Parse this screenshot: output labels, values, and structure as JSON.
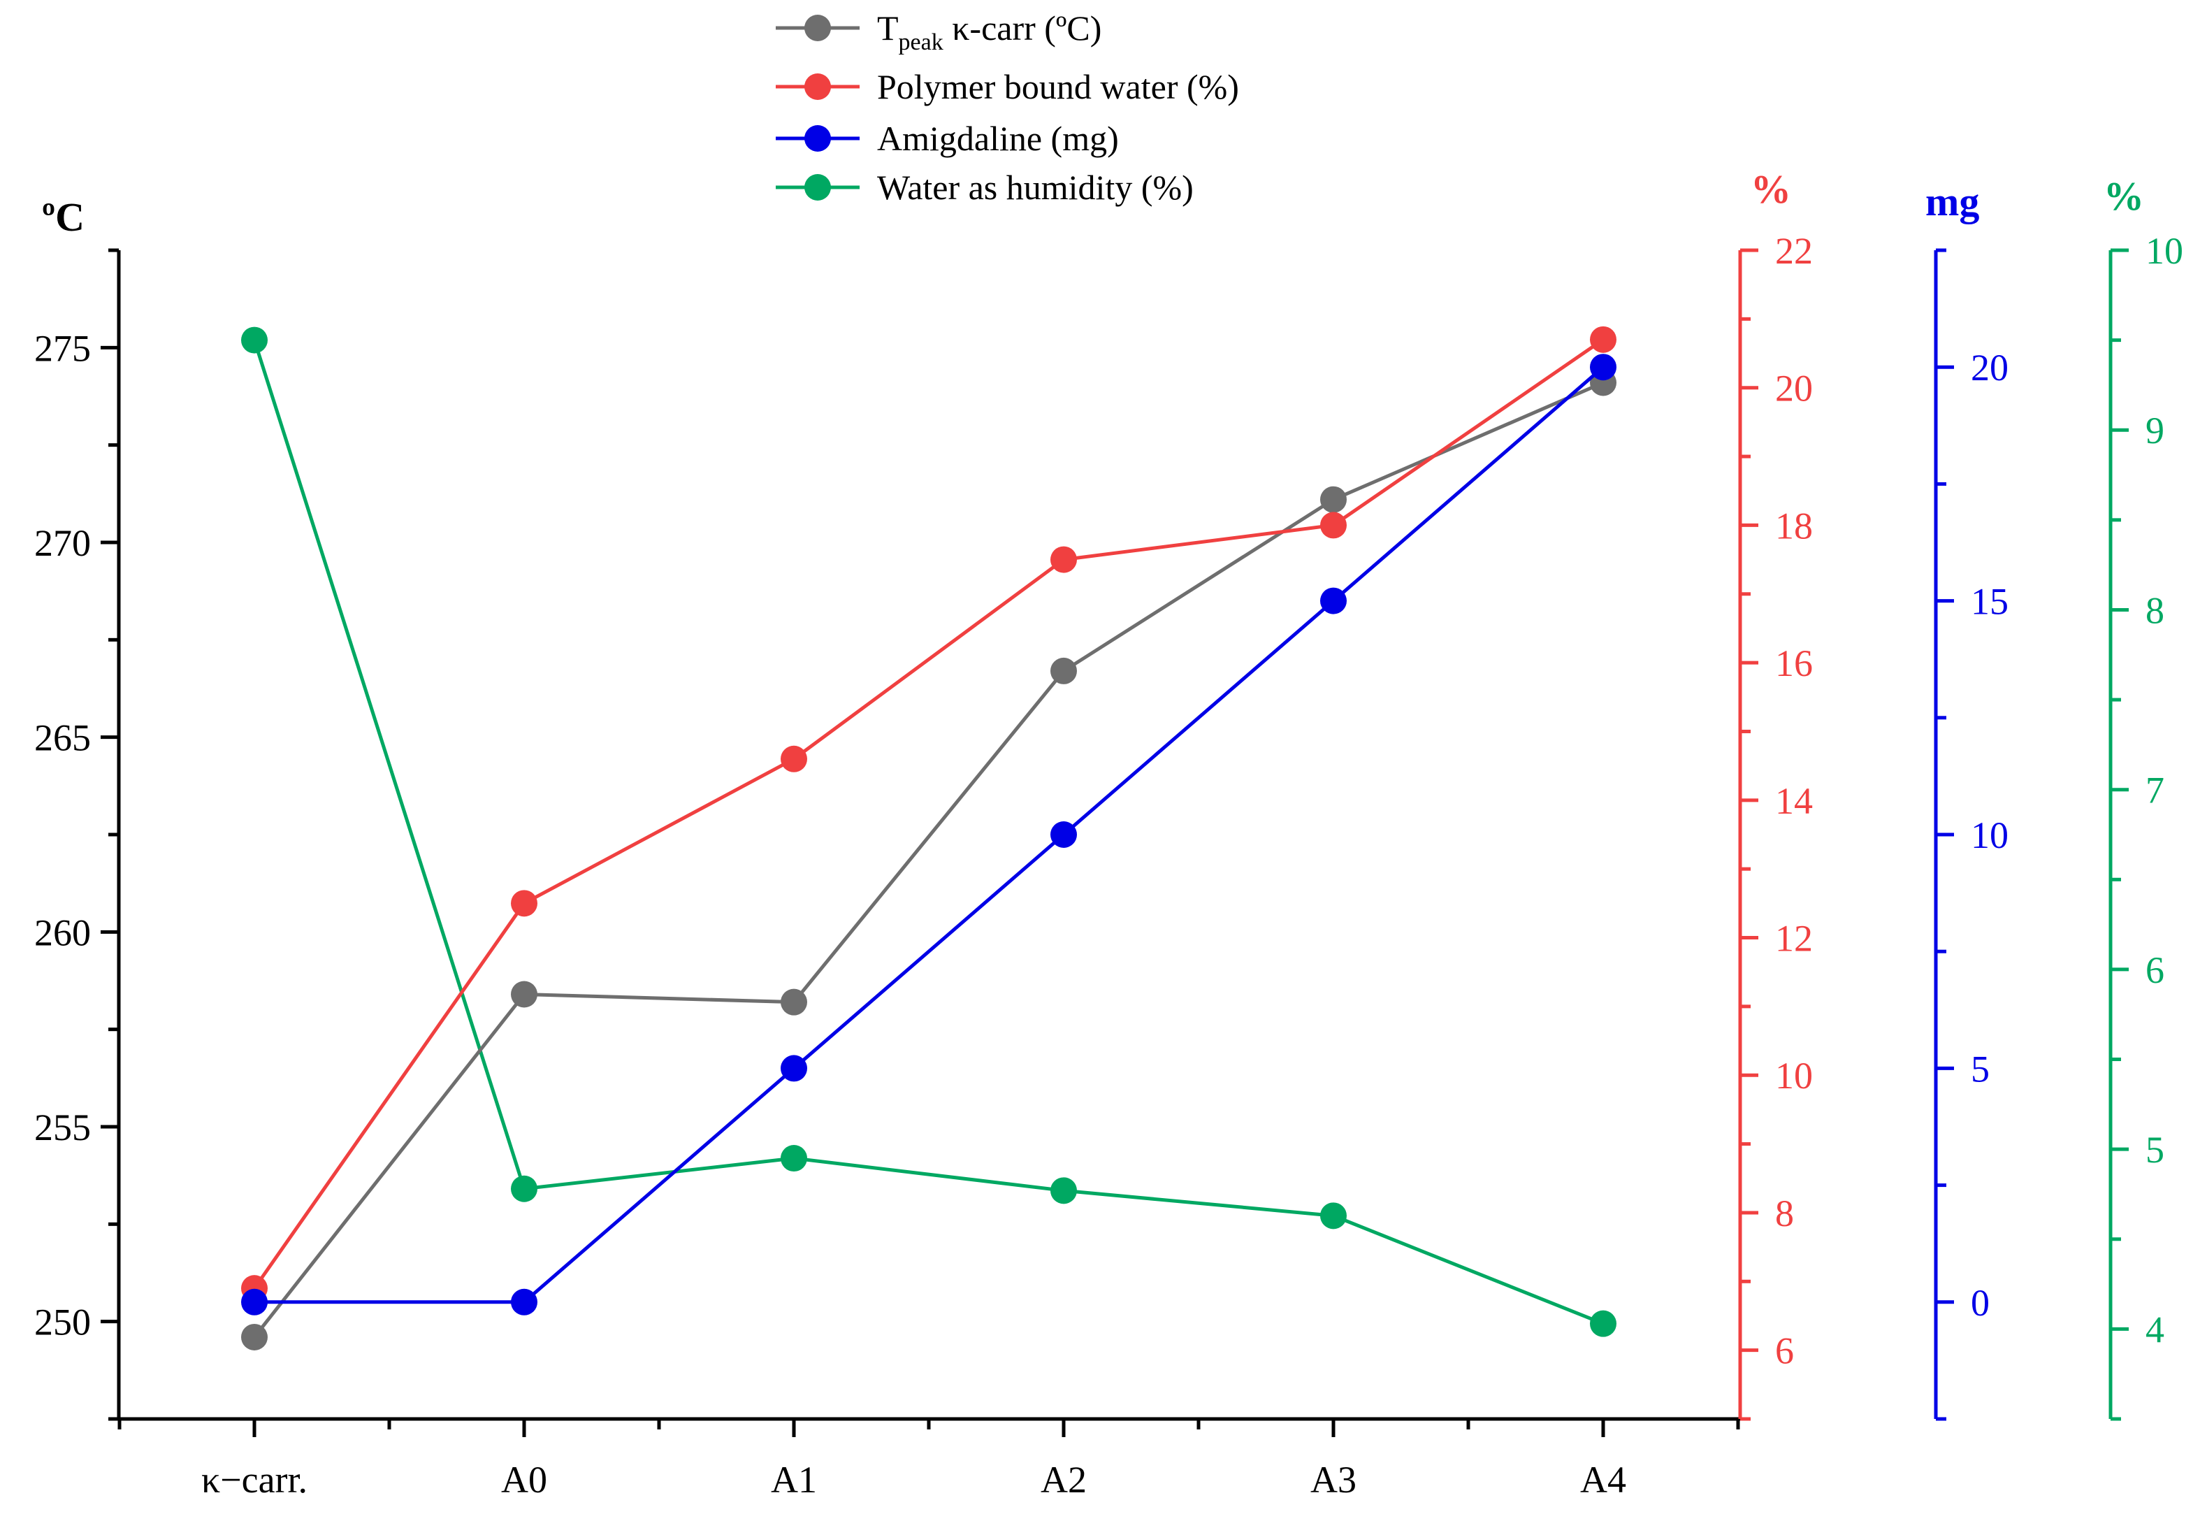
{
  "chart_data": {
    "type": "line",
    "categories": [
      "κ−carr.",
      "A0",
      "A1",
      "A2",
      "A3",
      "A4"
    ],
    "axes": {
      "left": {
        "title": "ºC",
        "ylim": [
          247.5,
          277.5
        ],
        "ticks": [
          250,
          255,
          260,
          265,
          270,
          275
        ],
        "color": "#000000"
      },
      "red": {
        "title": "%",
        "ylim": [
          5,
          22
        ],
        "ticks": [
          6,
          8,
          10,
          12,
          14,
          16,
          18,
          20,
          22
        ],
        "color": "#f04040"
      },
      "blue": {
        "title": "mg",
        "ylim": [
          -2.5,
          22.5
        ],
        "ticks": [
          0,
          5,
          10,
          15,
          20
        ],
        "color": "#0000e6"
      },
      "green": {
        "title": "%",
        "ylim": [
          3.5,
          10
        ],
        "ticks": [
          4,
          5,
          6,
          7,
          8,
          9,
          10
        ],
        "color": "#00a862"
      }
    },
    "series": [
      {
        "key": "tpeak",
        "name_main": "T",
        "name_sub": "peak",
        "name_rest": " κ-carr (ºC)",
        "axis": "left",
        "color": "#6e6e6e",
        "values": [
          249.6,
          258.4,
          258.2,
          266.7,
          271.1,
          274.1
        ]
      },
      {
        "key": "bound_water",
        "name_main": "Polymer bound water (%)",
        "axis": "red",
        "color": "#f04040",
        "values": [
          6.9,
          12.5,
          14.6,
          17.5,
          18.0,
          20.7
        ]
      },
      {
        "key": "amigdaline",
        "name_main": "Amigdaline (mg)",
        "axis": "blue",
        "color": "#0000e6",
        "values": [
          0,
          0,
          5,
          10,
          15,
          20
        ]
      },
      {
        "key": "humidity",
        "name_main": "Water as humidity (%)",
        "axis": "green",
        "color": "#00a862",
        "values": [
          9.5,
          4.78,
          4.95,
          4.77,
          4.63,
          4.03
        ]
      }
    ],
    "legend_position": "top-center"
  }
}
